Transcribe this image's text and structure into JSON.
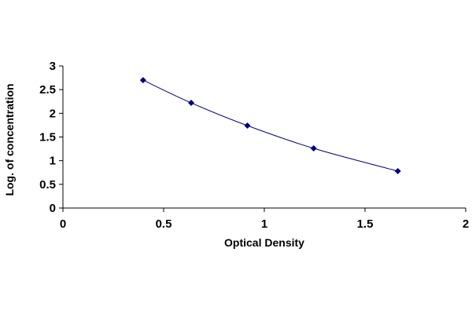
{
  "chart_data": {
    "type": "scatter",
    "title": "",
    "xlabel": "Optical Density",
    "ylabel": "Log. of concentration",
    "xlim": [
      0,
      2
    ],
    "ylim": [
      0,
      3
    ],
    "x_ticks": [
      "0",
      "0.5",
      "1",
      "1.5",
      "2"
    ],
    "y_ticks": [
      "0",
      "0.5",
      "1",
      "1.5",
      "2",
      "2.5",
      "3"
    ],
    "grid": false,
    "legend": "none",
    "series": [
      {
        "x": [
          0.398,
          0.637,
          0.916,
          1.245,
          1.663
        ],
        "y": [
          2.7,
          2.22,
          1.74,
          1.26,
          0.78
        ],
        "marker": "diamond",
        "line": "smooth",
        "color": "#000080"
      }
    ]
  }
}
